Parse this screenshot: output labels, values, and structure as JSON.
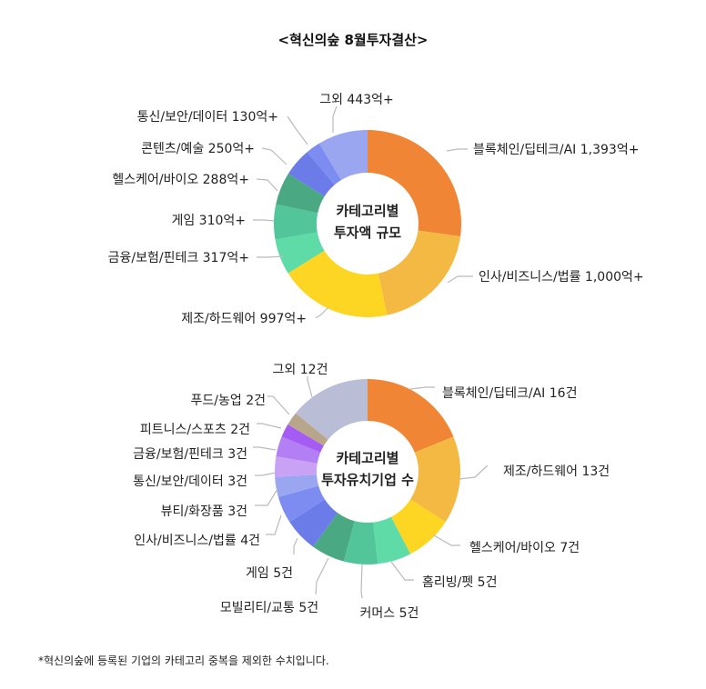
{
  "header": {
    "title": "<혁신의숲 8월투자결산>"
  },
  "footnote": "*혁신의숲에 등록된 기업의 카테고리 중복을 제외한 수치입니다.",
  "chart_data": [
    {
      "type": "pie",
      "title": "카테고리별 투자액 규모",
      "center_lines": [
        "카테고리별",
        "투자액 규모"
      ],
      "unit": "억",
      "categories": [
        "블록체인/딥테크/AI",
        "인사/비즈니스/법률",
        "제조/하드웨어",
        "금융/보험/핀테크",
        "게임",
        "헬스케어/바이오",
        "콘텐츠/예술",
        "통신/보안/데이터",
        "그외"
      ],
      "values": [
        1393,
        1000,
        997,
        317,
        310,
        288,
        250,
        130,
        443
      ],
      "labels": [
        "블록체인/딥테크/AI 1,393억+",
        "인사/비즈니스/법률 1,000억+",
        "제조/하드웨어 997억+",
        "금융/보험/핀테크 317억+",
        "게임 310억+",
        "헬스케어/바이오 288억+",
        "콘텐츠/예술 250억+",
        "통신/보안/데이터 130억+",
        "그외 443억+"
      ],
      "colors": [
        "#ef8535",
        "#f4b942",
        "#fdd623",
        "#5edba7",
        "#52c69a",
        "#4aa883",
        "#6b7be8",
        "#7c8cf0",
        "#9aa6f0"
      ]
    },
    {
      "type": "pie",
      "title": "카테고리별 투자유치기업 수",
      "center_lines": [
        "카테고리별",
        "투자유치기업 수"
      ],
      "unit": "건",
      "categories": [
        "블록체인/딥테크/AI",
        "제조/하드웨어",
        "헬스케어/바이오",
        "홈리빙/펫",
        "커머스",
        "모빌리티/교통",
        "게임",
        "인사/비즈니스/법률",
        "뷰티/화장품",
        "통신/보안/데이터",
        "금융/보험/핀테크",
        "피트니스/스포츠",
        "푸드/농업",
        "그외"
      ],
      "values": [
        16,
        13,
        7,
        5,
        5,
        5,
        5,
        4,
        3,
        3,
        3,
        2,
        2,
        12
      ],
      "labels": [
        "블록체인/딥테크/AI 16건",
        "제조/하드웨어 13건",
        "헬스케어/바이오 7건",
        "홈리빙/펫 5건",
        "커머스 5건",
        "모빌리티/교통 5건",
        "게임 5건",
        "인사/비즈니스/법률 4건",
        "뷰티/화장품 3건",
        "통신/보안/데이터 3건",
        "금융/보험/핀테크 3건",
        "피트니스/스포츠 2건",
        "푸드/농업 2건",
        "그외 12건"
      ],
      "colors": [
        "#ef8535",
        "#f4b942",
        "#fdd623",
        "#5edba7",
        "#52c69a",
        "#4aa883",
        "#6b7be8",
        "#7c8cf0",
        "#9aa6f0",
        "#c9a2f5",
        "#b27ff4",
        "#a45cf2",
        "#b8a58a",
        "#babdd6"
      ]
    }
  ]
}
